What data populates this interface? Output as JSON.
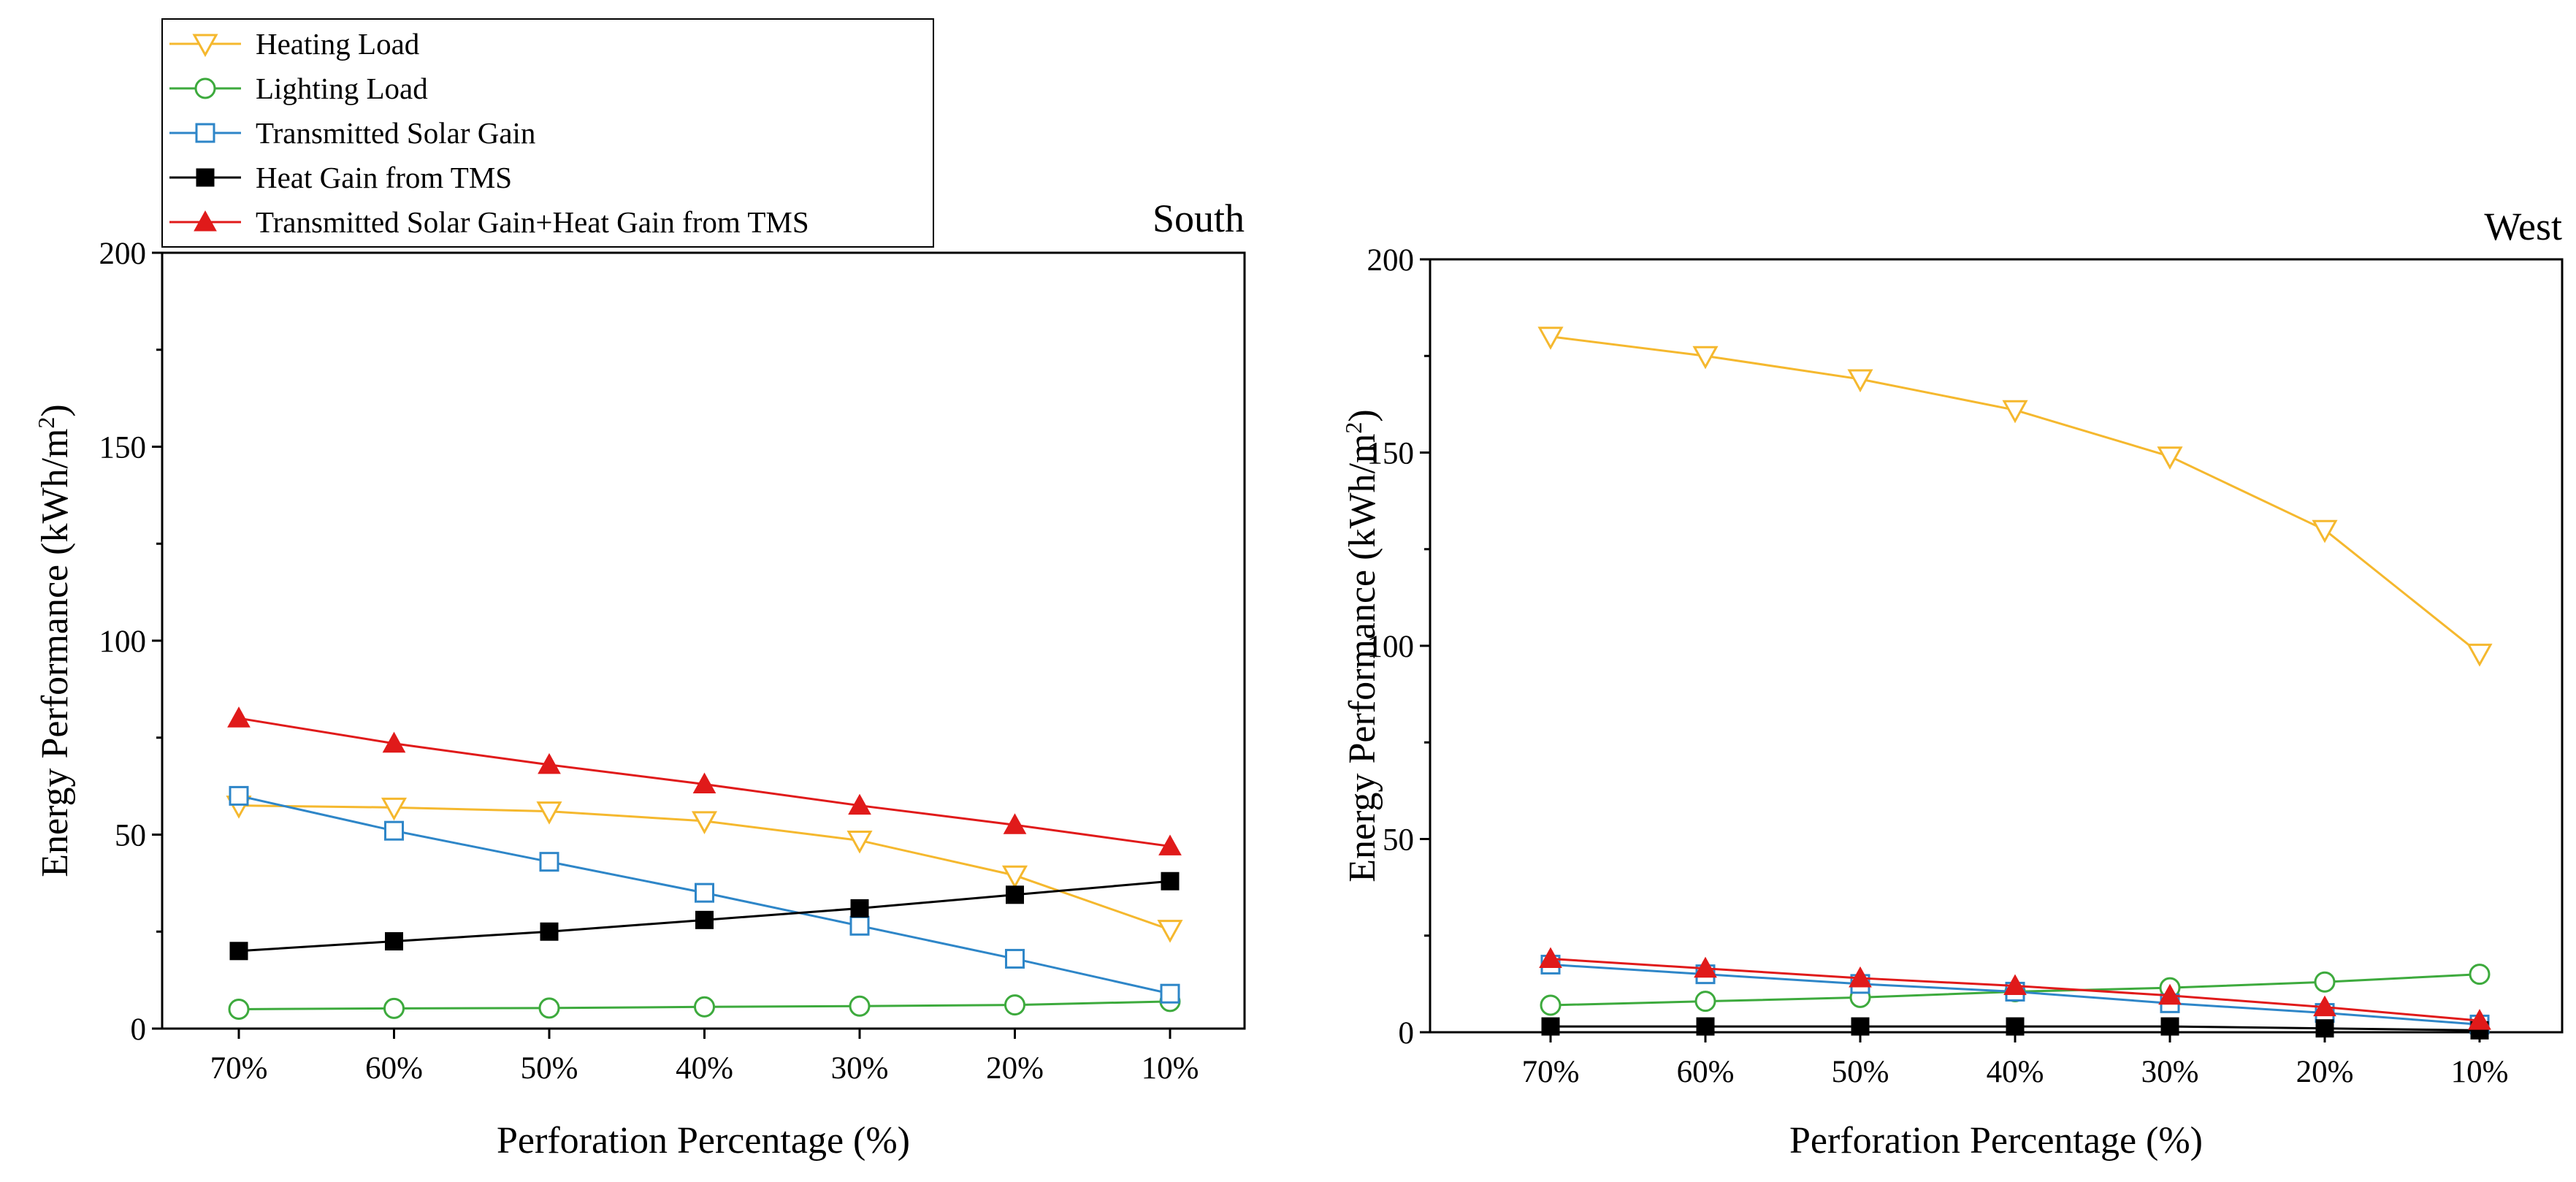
{
  "chart_data": [
    {
      "type": "line",
      "title": "South",
      "xlabel": "Perforation Percentage (%)",
      "ylabel": "Energy Performance (kWh/m",
      "ylabel_sup": "2",
      "ylabel_end": ")",
      "categories": [
        "70%",
        "60%",
        "50%",
        "40%",
        "30%",
        "20%",
        "10%"
      ],
      "ylim": [
        0,
        200
      ],
      "yticks": [
        "0",
        "50",
        "100",
        "150",
        "200"
      ],
      "series": [
        {
          "name": "Heating Load",
          "color": "#F5B82E",
          "marker": "triangle-down-open",
          "values": [
            57.5,
            57,
            56,
            53.5,
            48.5,
            39.5,
            25.5
          ]
        },
        {
          "name": "Lighting Load",
          "color": "#3DAA3D",
          "marker": "circle-open",
          "values": [
            5,
            5.2,
            5.3,
            5.6,
            5.8,
            6.1,
            7
          ]
        },
        {
          "name": "Transmitted Solar Gain",
          "color": "#2E86C8",
          "marker": "square-open",
          "values": [
            60,
            51,
            43,
            35,
            26.5,
            18,
            9
          ]
        },
        {
          "name": "Heat Gain from TMS",
          "color": "#000000",
          "marker": "square-filled",
          "values": [
            20,
            22.5,
            25,
            28,
            31,
            34.5,
            38
          ]
        },
        {
          "name": "Transmitted Solar Gain+Heat Gain from TMS",
          "color": "#E01A1A",
          "marker": "triangle-up-filled",
          "values": [
            80,
            73.5,
            68,
            63,
            57.5,
            52.5,
            47
          ]
        }
      ]
    },
    {
      "type": "line",
      "title": "West",
      "xlabel": "Perforation Percentage (%)",
      "ylabel": "Energy Performance (kWh/m",
      "ylabel_sup": "2",
      "ylabel_end": ")",
      "categories": [
        "70%",
        "60%",
        "50%",
        "40%",
        "30%",
        "20%",
        "10%"
      ],
      "ylim": [
        0,
        200
      ],
      "yticks": [
        "0",
        "50",
        "100",
        "150",
        "200"
      ],
      "series": [
        {
          "name": "Heating Load",
          "color": "#F5B82E",
          "marker": "triangle-down-open",
          "values": [
            180,
            175,
            169,
            161,
            149,
            130,
            98
          ]
        },
        {
          "name": "Lighting Load",
          "color": "#3DAA3D",
          "marker": "circle-open",
          "values": [
            7,
            8,
            9,
            10.5,
            11.5,
            13,
            15
          ]
        },
        {
          "name": "Transmitted Solar Gain",
          "color": "#2E86C8",
          "marker": "square-open",
          "values": [
            17.5,
            15,
            12.5,
            10.5,
            7.5,
            5,
            2
          ]
        },
        {
          "name": "Heat Gain from TMS",
          "color": "#000000",
          "marker": "square-filled",
          "values": [
            1.5,
            1.5,
            1.5,
            1.5,
            1.5,
            1,
            0.5
          ]
        },
        {
          "name": "Transmitted Solar Gain+Heat Gain from TMS",
          "color": "#E01A1A",
          "marker": "triangle-up-filled",
          "values": [
            19,
            16.5,
            14,
            12,
            9.5,
            6.5,
            3
          ]
        }
      ]
    }
  ],
  "legend": {
    "entries": [
      "Heating Load",
      "Lighting Load",
      "Transmitted Solar Gain",
      "Heat Gain from TMS",
      "Transmitted Solar Gain+Heat Gain from TMS"
    ]
  }
}
